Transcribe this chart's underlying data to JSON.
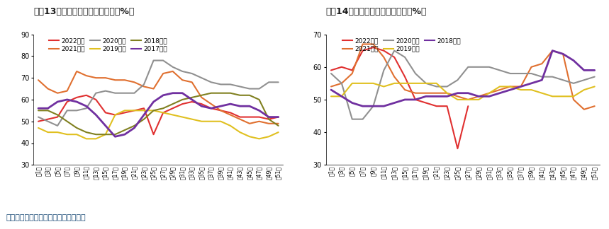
{
  "title1": "图表13：磷酸一铵开工率（单位：%）",
  "title2": "图表14：磷酸二铵开工率（单位：%）",
  "footer": "数据来源：隆众资讯、光大期货研究所",
  "xlabels": [
    "第1周",
    "第3周",
    "第5周",
    "第7周",
    "第9周",
    "第11周",
    "第13周",
    "第15周",
    "第17周",
    "第19周",
    "第21周",
    "第23周",
    "第25周",
    "第27周",
    "第29周",
    "第31周",
    "第33周",
    "第35周",
    "第37周",
    "第39周",
    "第41周",
    "第43周",
    "第45周",
    "第47周",
    "第49周",
    "第51周"
  ],
  "ylim1": [
    30,
    90
  ],
  "ylim2": [
    30,
    70
  ],
  "yticks1": [
    30,
    40,
    50,
    60,
    70,
    80,
    90
  ],
  "yticks2": [
    30,
    40,
    50,
    60,
    70
  ],
  "chart1": {
    "2022年度": {
      "color": "#e03030",
      "data": [
        50,
        51,
        52,
        59,
        61,
        62,
        60,
        54,
        53,
        54,
        55,
        56,
        44,
        54,
        56,
        58,
        59,
        58,
        56,
        55,
        54,
        52,
        52,
        52,
        51,
        52
      ]
    },
    "2021年度": {
      "color": "#e07030",
      "data": [
        69,
        65,
        63,
        64,
        73,
        71,
        70,
        70,
        69,
        69,
        68,
        66,
        65,
        72,
        73,
        69,
        68,
        61,
        58,
        55,
        53,
        51,
        49,
        50,
        49,
        49
      ]
    },
    "2020年度": {
      "color": "#909090",
      "data": [
        52,
        50,
        48,
        55,
        55,
        56,
        63,
        64,
        63,
        63,
        63,
        67,
        78,
        78,
        75,
        73,
        72,
        70,
        68,
        67,
        67,
        66,
        65,
        65,
        68,
        68
      ]
    },
    "2019年度": {
      "color": "#e0c020",
      "data": [
        47,
        45,
        45,
        44,
        44,
        42,
        42,
        44,
        53,
        55,
        55,
        55,
        55,
        54,
        53,
        52,
        51,
        50,
        50,
        50,
        48,
        45,
        43,
        42,
        43,
        45
      ]
    },
    "2018年度": {
      "color": "#808020",
      "data": [
        55,
        55,
        53,
        50,
        47,
        45,
        44,
        44,
        44,
        46,
        48,
        51,
        55,
        56,
        58,
        60,
        61,
        62,
        63,
        63,
        63,
        62,
        62,
        60,
        51,
        48
      ]
    },
    "2017年度": {
      "color": "#7030a0",
      "data": [
        56,
        56,
        59,
        60,
        59,
        57,
        53,
        48,
        43,
        44,
        47,
        53,
        59,
        62,
        63,
        63,
        60,
        57,
        56,
        57,
        58,
        57,
        57,
        55,
        52,
        52
      ]
    }
  },
  "chart2": {
    "2022年度": {
      "color": "#e03030",
      "data": [
        59,
        60,
        59,
        65,
        66,
        65,
        63,
        57,
        50,
        49,
        48,
        48,
        35,
        48,
        null,
        null,
        null,
        null,
        null,
        null,
        null,
        null,
        null,
        null,
        null,
        null
      ]
    },
    "2021年度": {
      "color": "#e07030",
      "data": [
        54,
        55,
        58,
        67,
        67,
        63,
        57,
        53,
        52,
        52,
        52,
        52,
        51,
        50,
        51,
        52,
        53,
        54,
        54,
        60,
        61,
        65,
        64,
        50,
        47,
        48
      ]
    },
    "2020年度": {
      "color": "#909090",
      "data": [
        58,
        55,
        44,
        44,
        48,
        59,
        65,
        63,
        58,
        55,
        54,
        54,
        56,
        60,
        60,
        60,
        59,
        58,
        58,
        58,
        57,
        57,
        56,
        55,
        56,
        57
      ]
    },
    "2019年度": {
      "color": "#e0c020",
      "data": [
        51,
        51,
        55,
        55,
        55,
        54,
        55,
        55,
        55,
        55,
        55,
        52,
        50,
        50,
        50,
        52,
        54,
        54,
        53,
        53,
        52,
        51,
        51,
        51,
        53,
        54
      ]
    },
    "2018年度": {
      "color": "#7030a0",
      "data": [
        53,
        51,
        49,
        48,
        48,
        48,
        49,
        50,
        50,
        51,
        51,
        51,
        52,
        52,
        51,
        51,
        52,
        53,
        54,
        55,
        56,
        65,
        64,
        62,
        59,
        59
      ]
    }
  },
  "legend1_order": [
    "2022年度",
    "2021年度",
    "2020年度",
    "2019年度",
    "2018年度",
    "2017年度"
  ],
  "legend2_order": [
    "2022年度",
    "2021年度",
    "2020年度",
    "2019年度",
    "2018年度"
  ],
  "title_color": "#1a1a1a",
  "title_bar_color": "#800080",
  "bg_color": "#ffffff",
  "footer_color": "#1f4e79"
}
